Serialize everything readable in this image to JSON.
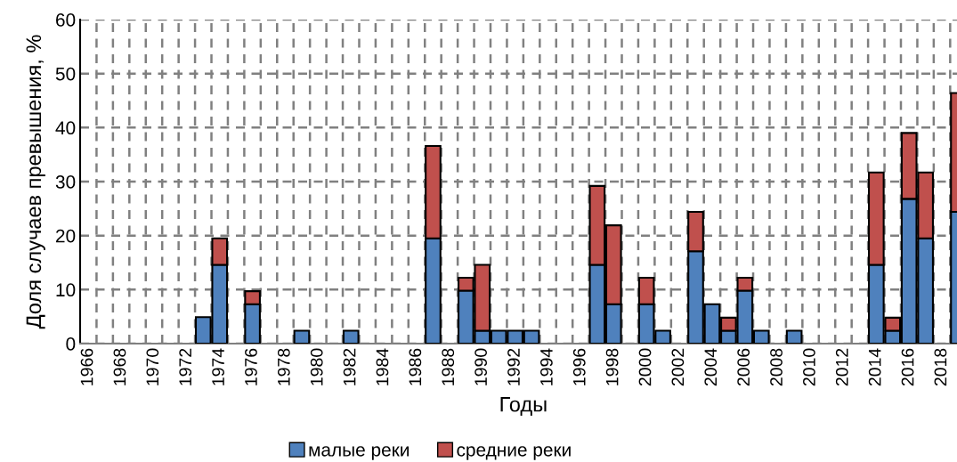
{
  "chart_data": {
    "type": "bar",
    "stacked": true,
    "xlabel": "Годы",
    "ylabel": "Доля случаев превышения, %",
    "categories": [
      "1966",
      null,
      "1968",
      null,
      "1970",
      null,
      "1972",
      null,
      "1974",
      null,
      "1976",
      null,
      "1978",
      null,
      "1980",
      null,
      "1982",
      null,
      "1984",
      null,
      "1986",
      null,
      "1988",
      null,
      "1990",
      null,
      "1992",
      null,
      "1994",
      null,
      "1996",
      null,
      "1998",
      null,
      "2000",
      null,
      "2002",
      null,
      "2004",
      null,
      "2006",
      null,
      "2008",
      null,
      "2010",
      null,
      "2012",
      null,
      "2014",
      null,
      "2016",
      null,
      "2018",
      null
    ],
    "series": [
      {
        "name": "малые реки",
        "color": "#4f81bd",
        "values": [
          null,
          null,
          null,
          null,
          null,
          null,
          null,
          4.9,
          14.6,
          null,
          7.3,
          null,
          null,
          2.4,
          null,
          null,
          2.4,
          null,
          null,
          null,
          null,
          19.5,
          null,
          9.8,
          2.4,
          2.4,
          2.4,
          2.4,
          null,
          null,
          null,
          14.6,
          7.3,
          null,
          7.3,
          2.4,
          null,
          17.1,
          7.3,
          2.4,
          9.8,
          2.4,
          null,
          2.4,
          null,
          null,
          null,
          null,
          14.6,
          2.4,
          26.8,
          19.5,
          null,
          24.4
        ]
      },
      {
        "name": "средние реки",
        "color": "#c0504d",
        "values": [
          null,
          null,
          null,
          null,
          null,
          null,
          null,
          null,
          4.9,
          null,
          2.4,
          null,
          null,
          null,
          null,
          null,
          null,
          null,
          null,
          null,
          null,
          17.1,
          null,
          2.4,
          12.2,
          null,
          null,
          null,
          null,
          null,
          null,
          14.6,
          14.6,
          null,
          4.9,
          null,
          null,
          7.3,
          null,
          2.4,
          2.4,
          null,
          null,
          null,
          null,
          null,
          null,
          null,
          17.1,
          2.4,
          12.2,
          12.2,
          null,
          22.0
        ]
      }
    ],
    "ylim": [
      0,
      60
    ],
    "yticks": [
      0,
      10,
      20,
      30,
      40,
      50,
      60
    ],
    "grid": true,
    "legend": "bottom"
  }
}
